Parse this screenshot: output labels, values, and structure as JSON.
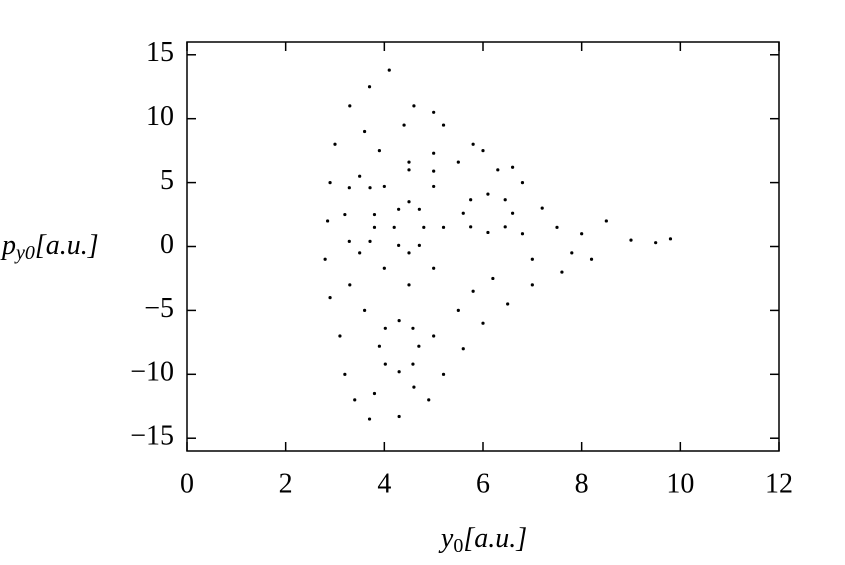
{
  "chart_data": {
    "type": "scatter",
    "x_label": {
      "base": "y",
      "sub": "0",
      "rest": "[a.u.]"
    },
    "y_label": {
      "base": "p",
      "sub": "y0",
      "rest": "[a.u.]"
    },
    "color": "#000000",
    "xlim": [
      0,
      12
    ],
    "ylim": [
      -16,
      16
    ],
    "xticks": [
      0,
      2,
      4,
      6,
      8,
      10,
      12
    ],
    "yticks": [
      {
        "value": -15,
        "label": "−15"
      },
      {
        "value": -10,
        "label": "−10"
      },
      {
        "value": -5,
        "label": "−5"
      },
      0,
      5,
      10,
      15
    ],
    "x": [
      4.8,
      4.5,
      4.2,
      4.5,
      4.71,
      4.29,
      4.29,
      4.71,
      5.2,
      4.5,
      3.8,
      4.5,
      5.0,
      4.0,
      4.0,
      5.0,
      3.8,
      3.5,
      3.2,
      3.5,
      3.71,
      3.29,
      3.29,
      3.71,
      6.6,
      6.1,
      5.6,
      6.1,
      6.45,
      5.75,
      5.75,
      6.45,
      5.5,
      5.0,
      4.5,
      5.0,
      4.7,
      4.3,
      3.9,
      4.3,
      4.58,
      4.02,
      4.02,
      4.58,
      3.0,
      3.3,
      3.7,
      4.1,
      4.6,
      5.2,
      5.8,
      6.3,
      6.8,
      7.2,
      7.5,
      8.0,
      8.5,
      9.0,
      9.5,
      9.8,
      8.2,
      7.6,
      7.0,
      6.5,
      6.0,
      5.6,
      5.2,
      4.9,
      4.3,
      3.7,
      3.4,
      3.2,
      3.1,
      2.9,
      2.8,
      2.85,
      2.9,
      3.6,
      4.4,
      5.0,
      6.0,
      7.0,
      6.8,
      5.5,
      5.0,
      3.6,
      3.3,
      6.2,
      5.8,
      3.8,
      4.6,
      3.9,
      6.6,
      7.8
    ],
    "values": [
      1.5,
      3.5,
      1.5,
      -0.5,
      2.91,
      2.91,
      0.09,
      0.09,
      1.5,
      6,
      1.5,
      -3,
      4.7,
      4.7,
      -1.7,
      -1.7,
      2.5,
      5.5,
      2.5,
      -0.5,
      4.6,
      4.6,
      0.4,
      0.4,
      2.6,
      4.1,
      2.6,
      1.1,
      3.66,
      3.66,
      1.54,
      1.54,
      6.6,
      7.3,
      6.6,
      5.9,
      -7.8,
      -5.8,
      -7.8,
      -9.8,
      -6.4,
      -6.4,
      -9.2,
      -9.2,
      8,
      11,
      12.5,
      13.8,
      11,
      9.5,
      8,
      6,
      5,
      3,
      1.5,
      1,
      2,
      0.5,
      0.3,
      0.6,
      -1,
      -2,
      -3,
      -4.5,
      -6,
      -8,
      -10,
      -12,
      -13.3,
      -13.5,
      -12,
      -10,
      -7,
      -4,
      -1,
      2,
      5,
      9,
      9.5,
      10.5,
      7.5,
      -1,
      1,
      -5,
      -7,
      -5,
      -3,
      -2.5,
      -3.5,
      -11.5,
      -11,
      7.5,
      6.2,
      -0.5
    ]
  }
}
